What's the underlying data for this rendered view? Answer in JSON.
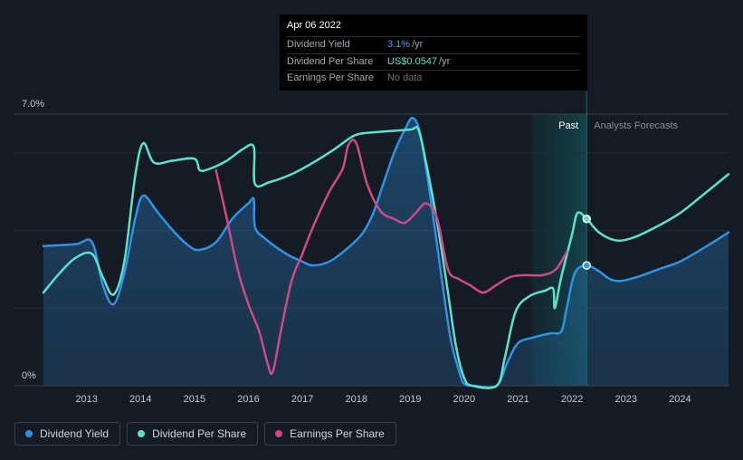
{
  "tooltip": {
    "date": "Apr 06 2022",
    "rows": [
      {
        "label": "Dividend Yield",
        "value": "3.1%",
        "unit": "/yr",
        "color": "#4ea5ec"
      },
      {
        "label": "Dividend Per Share",
        "value": "US$0.0547",
        "unit": "/yr",
        "color": "#5be2cc"
      },
      {
        "label": "Earnings Per Share",
        "value": "No data",
        "unit": "",
        "color": "#6c7078"
      }
    ]
  },
  "legend": [
    {
      "label": "Dividend Yield",
      "color": "#2e93e6"
    },
    {
      "label": "Dividend Per Share",
      "color": "#5be2cc"
    },
    {
      "label": "Earnings Per Share",
      "color": "#d0478a"
    }
  ],
  "chart_data": {
    "type": "line",
    "y_axis_labels": [
      "7.0%",
      "0%"
    ],
    "ylim": [
      0,
      7.0
    ],
    "xlim": [
      2012.2,
      2024.9
    ],
    "x_ticks": [
      2013,
      2014,
      2015,
      2016,
      2017,
      2018,
      2019,
      2020,
      2021,
      2022,
      2023,
      2024
    ],
    "past_label": "Past",
    "forecast_label": "Analysts Forecasts",
    "past_band": [
      2021.25,
      2022.27
    ],
    "grid": true,
    "series": [
      {
        "name": "Dividend Yield",
        "color": "#2e93e6",
        "fill": true,
        "points": [
          [
            2012.2,
            3.6
          ],
          [
            2012.8,
            3.65
          ],
          [
            2013.1,
            3.7
          ],
          [
            2013.3,
            2.6
          ],
          [
            2013.5,
            2.1
          ],
          [
            2013.7,
            2.9
          ],
          [
            2013.9,
            4.3
          ],
          [
            2014.05,
            4.9
          ],
          [
            2014.3,
            4.5
          ],
          [
            2014.6,
            4.0
          ],
          [
            2014.9,
            3.6
          ],
          [
            2015.1,
            3.5
          ],
          [
            2015.4,
            3.7
          ],
          [
            2015.7,
            4.3
          ],
          [
            2016.0,
            4.7
          ],
          [
            2016.1,
            4.8
          ],
          [
            2016.12,
            4.1
          ],
          [
            2016.3,
            3.8
          ],
          [
            2016.7,
            3.4
          ],
          [
            2017.0,
            3.2
          ],
          [
            2017.2,
            3.1
          ],
          [
            2017.5,
            3.2
          ],
          [
            2017.8,
            3.5
          ],
          [
            2018.1,
            3.9
          ],
          [
            2018.3,
            4.4
          ],
          [
            2018.5,
            5.2
          ],
          [
            2018.7,
            6.0
          ],
          [
            2018.9,
            6.6
          ],
          [
            2019.05,
            6.9
          ],
          [
            2019.2,
            6.4
          ],
          [
            2019.4,
            4.6
          ],
          [
            2019.6,
            2.6
          ],
          [
            2019.75,
            1.2
          ],
          [
            2019.9,
            0.4
          ],
          [
            2020.0,
            0.05
          ],
          [
            2020.2,
            0.0
          ],
          [
            2020.6,
            0.0
          ],
          [
            2020.8,
            0.6
          ],
          [
            2021.0,
            1.1
          ],
          [
            2021.3,
            1.25
          ],
          [
            2021.6,
            1.35
          ],
          [
            2021.8,
            1.4
          ],
          [
            2021.9,
            2.0
          ],
          [
            2022.05,
            2.9
          ],
          [
            2022.27,
            3.1
          ],
          [
            2022.5,
            2.95
          ],
          [
            2022.7,
            2.75
          ],
          [
            2022.9,
            2.7
          ],
          [
            2023.2,
            2.8
          ],
          [
            2023.6,
            3.0
          ],
          [
            2024.0,
            3.2
          ],
          [
            2024.5,
            3.6
          ],
          [
            2024.9,
            3.95
          ]
        ]
      },
      {
        "name": "Dividend Per Share",
        "color": "#5be2cc",
        "points": [
          [
            2012.2,
            2.4
          ],
          [
            2012.5,
            2.9
          ],
          [
            2012.8,
            3.3
          ],
          [
            2013.1,
            3.4
          ],
          [
            2013.3,
            2.8
          ],
          [
            2013.5,
            2.35
          ],
          [
            2013.7,
            3.2
          ],
          [
            2013.9,
            5.4
          ],
          [
            2014.05,
            6.25
          ],
          [
            2014.25,
            5.75
          ],
          [
            2014.6,
            5.8
          ],
          [
            2015.0,
            5.85
          ],
          [
            2015.1,
            5.55
          ],
          [
            2015.3,
            5.6
          ],
          [
            2015.6,
            5.8
          ],
          [
            2015.9,
            6.1
          ],
          [
            2016.1,
            6.15
          ],
          [
            2016.12,
            5.2
          ],
          [
            2016.4,
            5.25
          ],
          [
            2016.8,
            5.45
          ],
          [
            2017.2,
            5.75
          ],
          [
            2017.6,
            6.1
          ],
          [
            2017.9,
            6.4
          ],
          [
            2018.1,
            6.5
          ],
          [
            2018.5,
            6.55
          ],
          [
            2019.0,
            6.6
          ],
          [
            2019.15,
            6.6
          ],
          [
            2019.3,
            5.7
          ],
          [
            2019.5,
            4.2
          ],
          [
            2019.7,
            2.4
          ],
          [
            2019.85,
            1.0
          ],
          [
            2020.0,
            0.2
          ],
          [
            2020.15,
            0.0
          ],
          [
            2020.6,
            0.0
          ],
          [
            2020.75,
            0.7
          ],
          [
            2020.95,
            1.9
          ],
          [
            2021.2,
            2.3
          ],
          [
            2021.5,
            2.45
          ],
          [
            2021.65,
            2.5
          ],
          [
            2021.68,
            2.0
          ],
          [
            2021.8,
            2.8
          ],
          [
            2022.0,
            3.9
          ],
          [
            2022.1,
            4.45
          ],
          [
            2022.27,
            4.3
          ],
          [
            2022.5,
            3.95
          ],
          [
            2022.8,
            3.75
          ],
          [
            2023.1,
            3.8
          ],
          [
            2023.5,
            4.05
          ],
          [
            2024.0,
            4.45
          ],
          [
            2024.5,
            5.0
          ],
          [
            2024.9,
            5.45
          ]
        ]
      },
      {
        "name": "Earnings Per Share",
        "color": "#d0478a",
        "points": [
          [
            2015.4,
            5.55
          ],
          [
            2015.6,
            4.3
          ],
          [
            2015.8,
            3.0
          ],
          [
            2016.0,
            2.1
          ],
          [
            2016.2,
            1.4
          ],
          [
            2016.35,
            0.6
          ],
          [
            2016.45,
            0.35
          ],
          [
            2016.6,
            1.4
          ],
          [
            2016.8,
            2.7
          ],
          [
            2017.0,
            3.4
          ],
          [
            2017.2,
            4.1
          ],
          [
            2017.5,
            5.0
          ],
          [
            2017.75,
            5.6
          ],
          [
            2017.85,
            6.2
          ],
          [
            2018.0,
            6.25
          ],
          [
            2018.2,
            5.2
          ],
          [
            2018.45,
            4.5
          ],
          [
            2018.7,
            4.3
          ],
          [
            2018.9,
            4.2
          ],
          [
            2019.1,
            4.45
          ],
          [
            2019.3,
            4.7
          ],
          [
            2019.5,
            4.3
          ],
          [
            2019.7,
            3.0
          ],
          [
            2019.9,
            2.75
          ],
          [
            2020.1,
            2.6
          ],
          [
            2020.35,
            2.4
          ],
          [
            2020.6,
            2.6
          ],
          [
            2020.85,
            2.8
          ],
          [
            2021.1,
            2.85
          ],
          [
            2021.45,
            2.85
          ],
          [
            2021.7,
            3.0
          ],
          [
            2021.9,
            3.45
          ]
        ]
      }
    ],
    "markers": [
      {
        "series": "Dividend Yield",
        "x": 2022.27,
        "y": 3.1
      },
      {
        "series": "Dividend Per Share",
        "x": 2022.27,
        "y": 4.3
      }
    ]
  }
}
